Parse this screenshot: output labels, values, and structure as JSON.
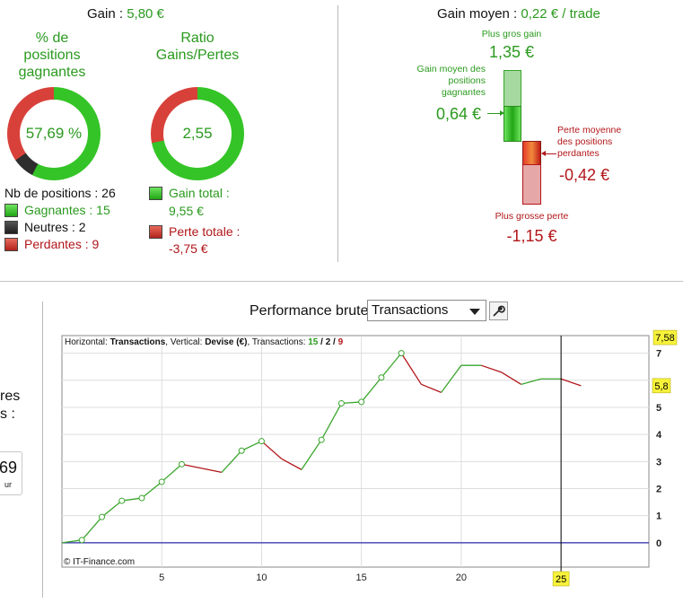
{
  "summary": {
    "gain_label": "Gain : ",
    "gain_value": "5,80 €",
    "pct_title": "% de positions gagnantes",
    "pct_value": "57,69 %",
    "ratio_title": "Ratio Gains/Pertes",
    "ratio_value": "2,55",
    "nb_positions": "Nb de positions : 26",
    "winners": "Gagnantes : 15",
    "neutrals": "Neutres : 2",
    "losers": "Perdantes : 9",
    "total_gain_label": "Gain total :",
    "total_gain_value": "9,55 €",
    "total_loss_label": "Perte totale :",
    "total_loss_value": "-3,75 €",
    "donut1_fractions": {
      "win": 0.5769,
      "neutral": 0.0769,
      "loss": 0.3462
    },
    "donut2_fractions": {
      "gain": 0.7181,
      "loss": 0.2819
    }
  },
  "gain_moyen": {
    "label": "Gain moyen : ",
    "value": "0,22 € / trade",
    "max_gain_label": "Plus gros gain",
    "max_gain_value": "1,35 €",
    "avg_gain_label": "Gain moyen des positions gagnantes",
    "avg_gain_value": "0,64 €",
    "avg_loss_label": "Perte moyenne des positions perdantes",
    "avg_loss_value": "-0,42 €",
    "max_loss_label": "Plus grosse perte",
    "max_loss_value": "-1,15 €"
  },
  "left_partial": {
    "text1": "res",
    "text2": "s :",
    "box_value": "69",
    "box_sub": "ur"
  },
  "performance": {
    "title": "Performance brute",
    "select_value": "Transactions"
  },
  "chart_data": {
    "type": "line",
    "info_prefix": "Horizontal: ",
    "info_h": "Transactions",
    "info_mid": ", Vertical: ",
    "info_v": "Devise (€)",
    "info_tr": ", Transactions: ",
    "info_w": "15",
    "info_sep1": " / ",
    "info_n": "2",
    "info_sep2": " / ",
    "info_l": "9",
    "copyright": "© IT-Finance.com",
    "x": [
      0,
      1,
      2,
      3,
      4,
      5,
      6,
      7,
      8,
      9,
      10,
      11,
      12,
      13,
      14,
      15,
      16,
      17,
      18,
      19,
      20,
      21,
      22,
      23,
      24,
      25,
      26
    ],
    "y": [
      0,
      0.1,
      0.95,
      1.55,
      1.65,
      2.25,
      2.9,
      2.75,
      2.6,
      3.4,
      3.75,
      3.1,
      2.7,
      3.8,
      5.15,
      5.2,
      6.1,
      7.0,
      5.85,
      5.55,
      6.55,
      6.55,
      6.3,
      5.85,
      6.05,
      6.05,
      5.8
    ],
    "point_types": [
      "none",
      "win",
      "win",
      "win",
      "win",
      "win",
      "win",
      "loss",
      "loss",
      "win",
      "win",
      "loss",
      "loss",
      "win",
      "win",
      "win",
      "win",
      "win",
      "loss",
      "loss",
      "win",
      "neutral",
      "loss",
      "loss",
      "win",
      "neutral",
      "loss"
    ],
    "x_ticks": [
      "5",
      "10",
      "15",
      "20"
    ],
    "x_tick_values": [
      5,
      10,
      15,
      20
    ],
    "y_ticks": [
      "0",
      "1",
      "2",
      "3",
      "4",
      "5",
      "7"
    ],
    "y_tick_values": [
      0,
      1,
      2,
      3,
      4,
      5,
      7
    ],
    "xlim": [
      0,
      29.4
    ],
    "ylim": [
      -0.9,
      7.65
    ],
    "max_badge": "7,58",
    "max_value": 7.58,
    "last_badge": "5,8",
    "last_value": 5.8,
    "cursor_badge": "25",
    "cursor_x": 25,
    "colors": {
      "win": "#3aa62c",
      "loss": "#b2161a",
      "baseline": "#2a2aa8",
      "grid": "#dddddd",
      "badge": "#f7f23a"
    }
  }
}
